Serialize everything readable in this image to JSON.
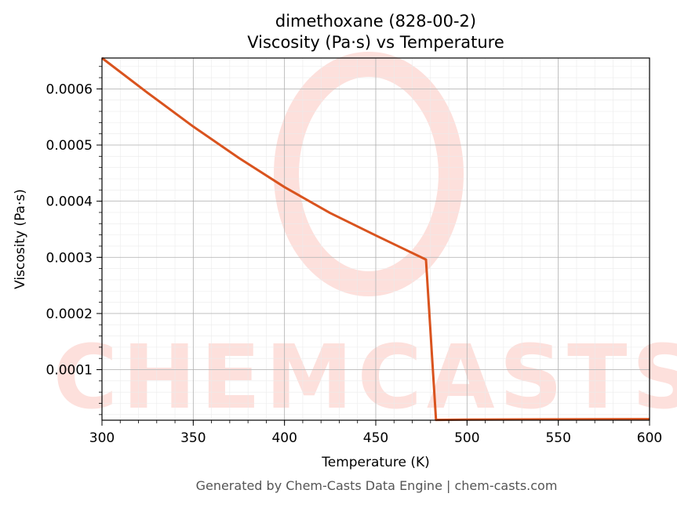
{
  "chart_data": {
    "type": "line",
    "title": "dimethoxane (828-00-2)",
    "subtitle": "Viscosity (Pa·s) vs Temperature",
    "xlabel": "Temperature (K)",
    "ylabel": "Viscosity (Pa·s)",
    "xlim": [
      300,
      600
    ],
    "ylim": [
      1e-05,
      0.000655
    ],
    "xticks": [
      300,
      350,
      400,
      450,
      500,
      550,
      600
    ],
    "xtick_labels": [
      "300",
      "350",
      "400",
      "450",
      "500",
      "550",
      "600"
    ],
    "yticks": [
      0.0001,
      0.0002,
      0.0003,
      0.0004,
      0.0005,
      0.0006
    ],
    "ytick_labels": [
      "0.0001",
      "0.0002",
      "0.0003",
      "0.0004",
      "0.0005",
      "0.0006"
    ],
    "grid": true,
    "minor_grid": true,
    "line_color": "#d9531e",
    "series": [
      {
        "x": [
          300,
          325,
          350,
          375,
          400,
          425,
          450,
          477.5,
          483,
          500,
          550,
          600
        ],
        "values": [
          0.000655,
          0.000593,
          0.000533,
          0.000477,
          0.000425,
          0.000379,
          0.000339,
          0.000296,
          1.05e-05,
          1.1e-05,
          1.15e-05,
          1.2e-05
        ]
      }
    ]
  },
  "watermark_text": "CHEMCASTS",
  "footer": "Generated by Chem-Casts Data Engine | chem-casts.com"
}
